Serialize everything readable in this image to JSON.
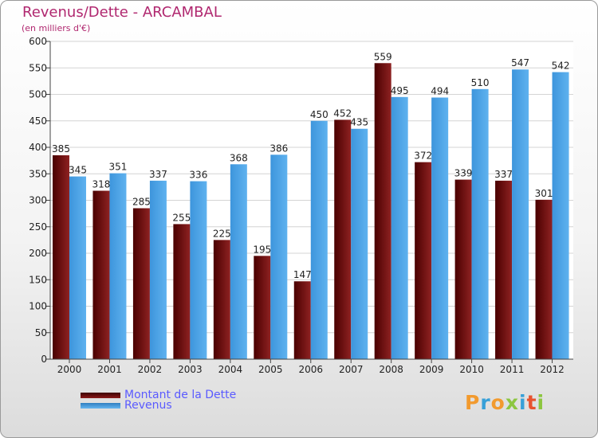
{
  "chart_data": {
    "type": "bar",
    "title": "Revenus/Dette - ARCAMBAL",
    "subtitle": "(en milliers d'€)",
    "categories": [
      "2000",
      "2001",
      "2002",
      "2003",
      "2004",
      "2005",
      "2006",
      "2007",
      "2008",
      "2009",
      "2010",
      "2011",
      "2012"
    ],
    "series": [
      {
        "name": "Montant de la Dette",
        "color": "#7a0c10",
        "values": [
          385,
          318,
          285,
          255,
          225,
          195,
          147,
          452,
          559,
          372,
          339,
          337,
          301
        ]
      },
      {
        "name": "Revenus",
        "color": "#4aa3e6",
        "values": [
          345,
          351,
          337,
          336,
          368,
          386,
          450,
          435,
          495,
          494,
          510,
          547,
          542
        ]
      }
    ],
    "ylim": [
      0,
      600
    ],
    "yticks": [
      0,
      50,
      100,
      150,
      200,
      250,
      300,
      350,
      400,
      450,
      500,
      550,
      600
    ],
    "grid": true,
    "legend_position": "bottom-left"
  },
  "logo_text": "Proxiti",
  "colors": {
    "title": "#b0276f",
    "legend_text": "#5a5aff",
    "logo": [
      "#f29a2e",
      "#37a0d8",
      "#f29a2e",
      "#8cc63f",
      "#37a0d8",
      "#e8532f",
      "#8cc63f"
    ]
  }
}
